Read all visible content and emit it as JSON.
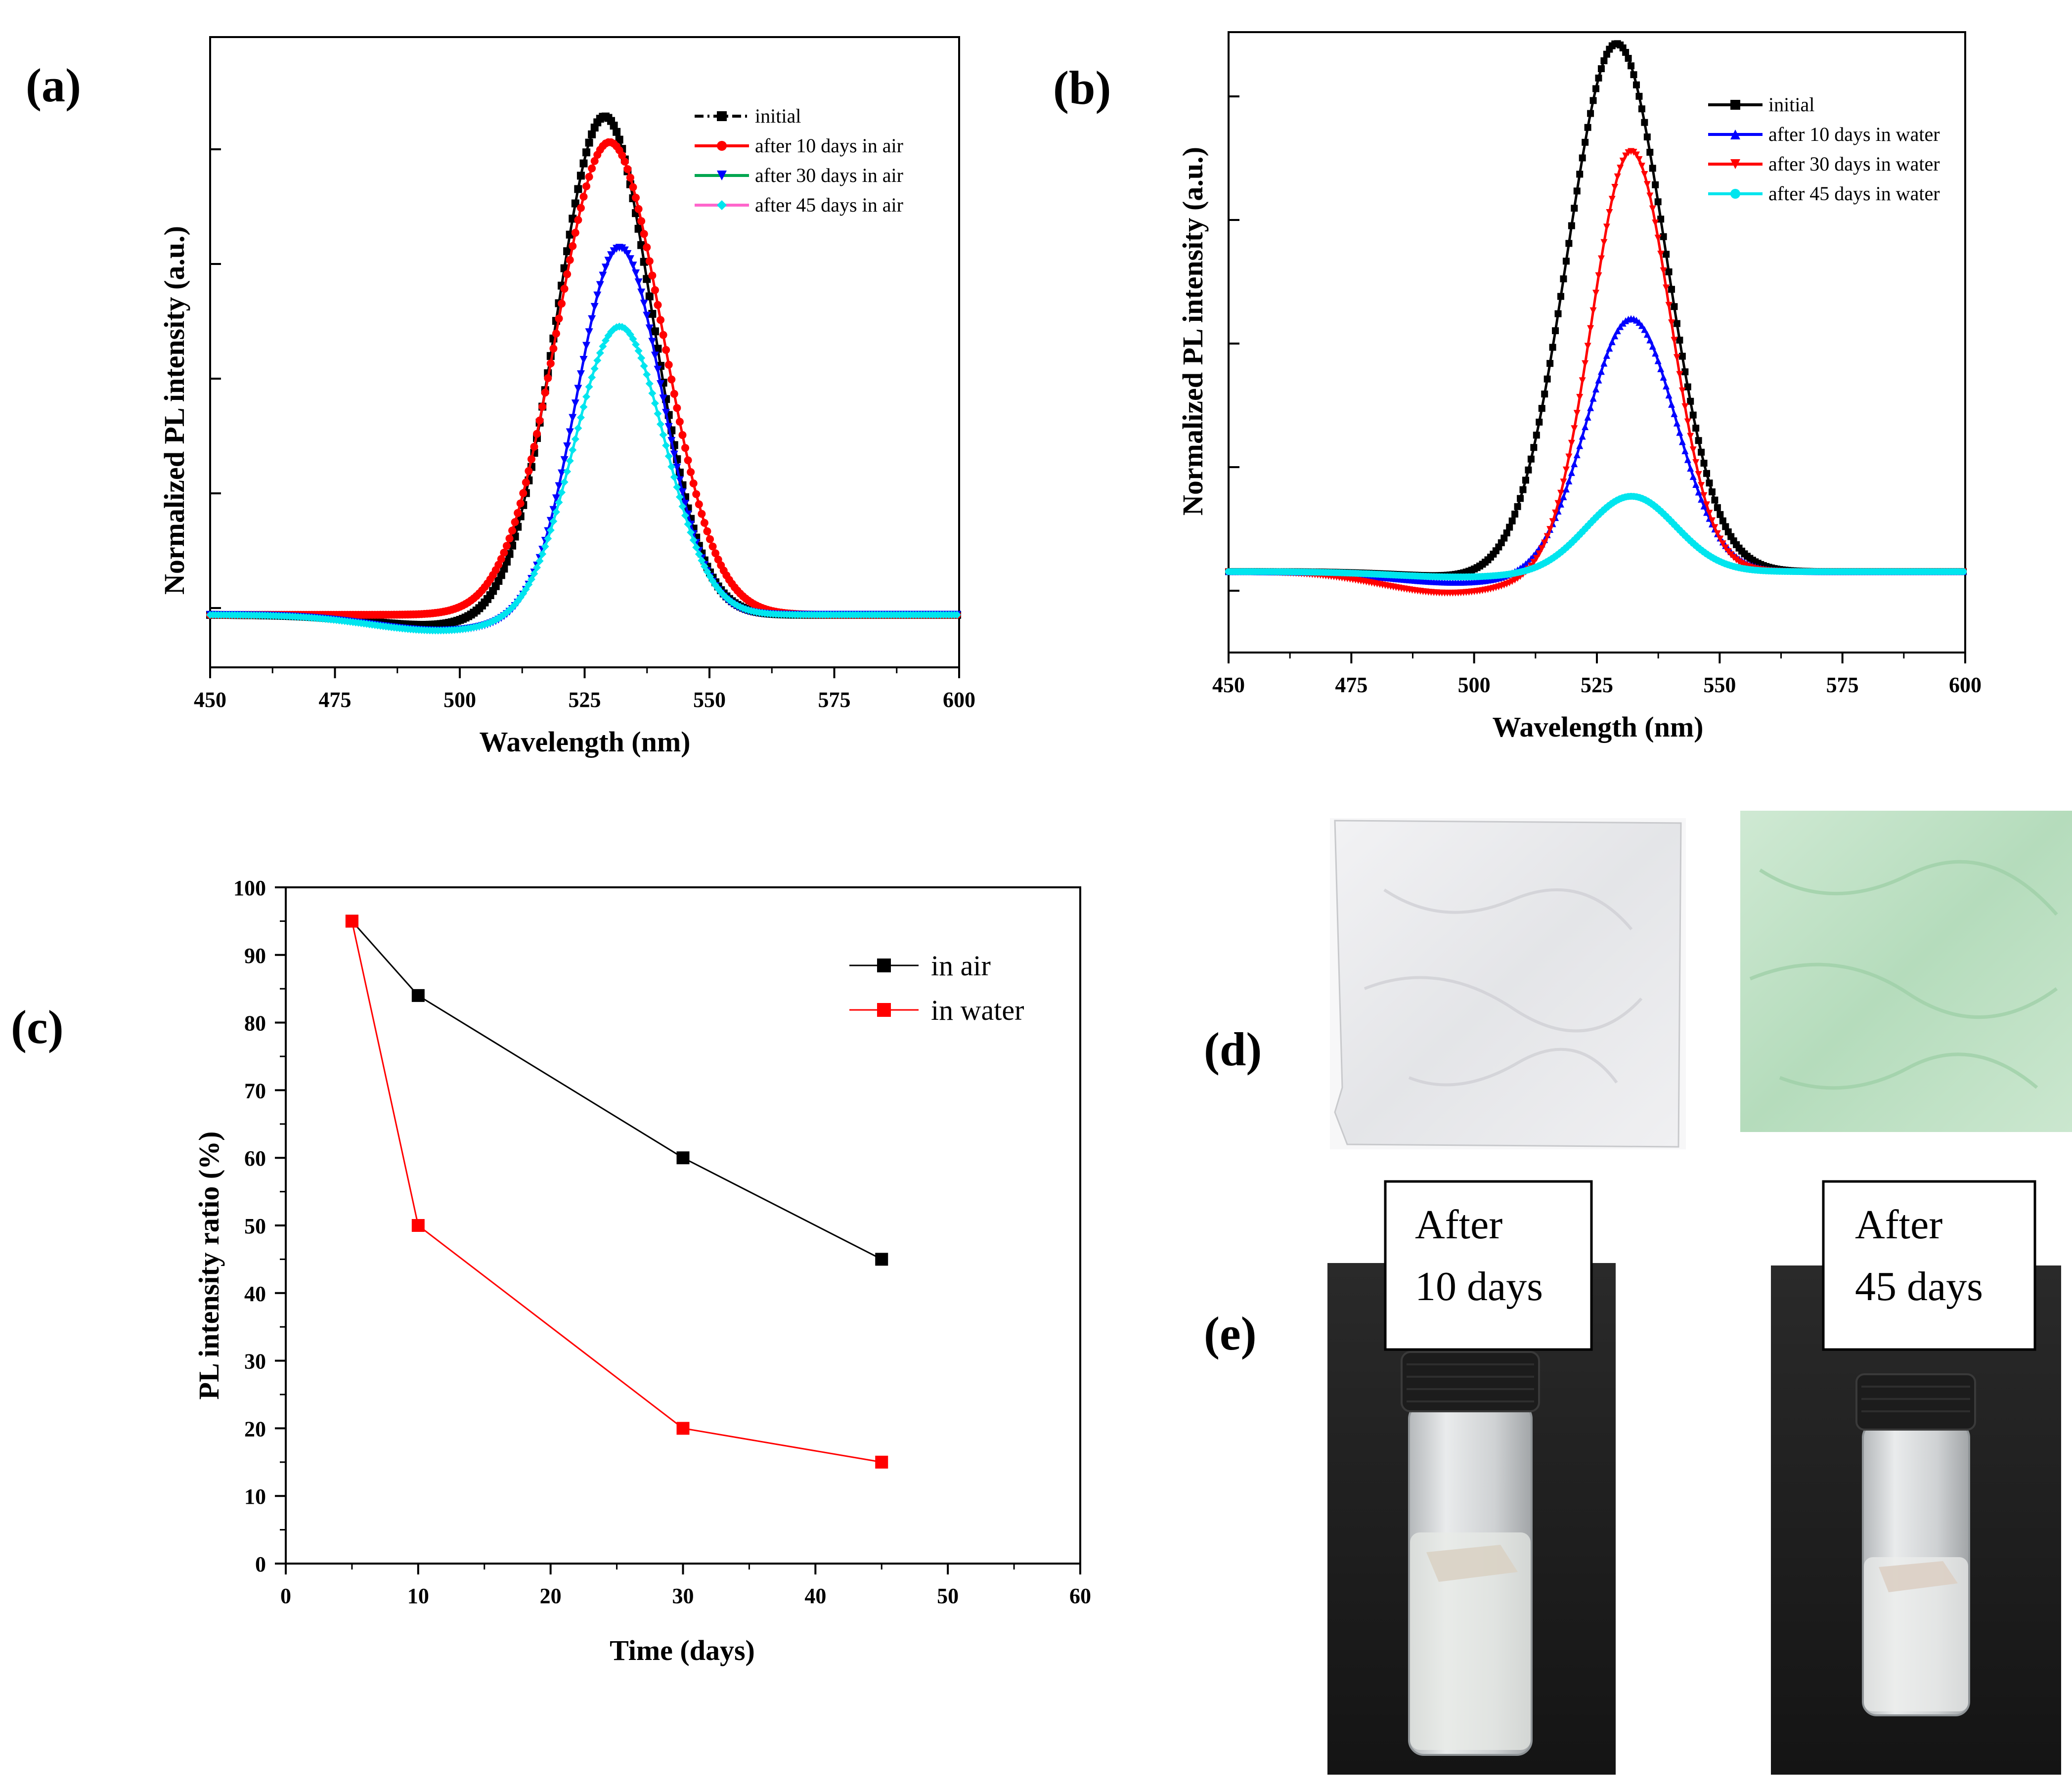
{
  "chart_data": [
    {
      "panel": "(a)",
      "type": "line",
      "xlabel": "Wavelength (nm)",
      "ylabel": "Normalized PL intensity (a.u.)",
      "xlim": [
        450,
        600
      ],
      "ylim": [
        -0.1,
        1.1
      ],
      "xticks": [
        450,
        475,
        500,
        525,
        550,
        575,
        600
      ],
      "yticks_labeled": false,
      "legend_position": "top-right",
      "series": [
        {
          "name": "initial",
          "color": "#000000",
          "marker": "square",
          "style": "dash-dot",
          "baseline": 0,
          "peak_x": 529,
          "peak_y": 0.95,
          "sigma": 9.5,
          "dip_x": 495,
          "dip_y": -0.02
        },
        {
          "name": "after 10 days in air",
          "color": "#ff0000",
          "marker": "circle",
          "style": "solid",
          "baseline": 0,
          "peak_x": 530,
          "peak_y": 0.9,
          "sigma": 10.5,
          "dip_x": 500,
          "dip_y": 0
        },
        {
          "name": "after 30 days in air",
          "color": "#0000ff",
          "marker": "triangle-down",
          "style": "solid",
          "baseline": 0,
          "peak_x": 532,
          "peak_y": 0.7,
          "sigma": 8.5,
          "dip_x": 496,
          "dip_y": -0.03
        },
        {
          "name": "after 45 days in air",
          "color": "#00e5ee",
          "marker": "diamond",
          "style": "solid",
          "baseline": 0,
          "peak_x": 532,
          "peak_y": 0.55,
          "sigma": 9,
          "dip_x": 496,
          "dip_y": -0.03
        }
      ],
      "legend_line_colors": [
        "#000000",
        "#ff0000",
        "#00a650",
        "#ff66cc"
      ]
    },
    {
      "panel": "(b)",
      "type": "line",
      "xlabel": "Wavelength (nm)",
      "ylabel": "Normalized PL intensity (a.u.)",
      "xlim": [
        450,
        600
      ],
      "ylim": [
        -0.15,
        1.0
      ],
      "xticks": [
        450,
        475,
        500,
        525,
        550,
        575,
        600
      ],
      "yticks_labeled": false,
      "legend_position": "top-right",
      "series": [
        {
          "name": "initial",
          "color": "#000000",
          "marker": "square",
          "style": "solid",
          "baseline": 0,
          "peak_x": 529,
          "peak_y": 0.98,
          "sigma": 10,
          "dip_x": 500,
          "dip_y": -0.01
        },
        {
          "name": "after 10 days in water",
          "color": "#0000ff",
          "marker": "triangle-up",
          "style": "solid",
          "baseline": 0,
          "peak_x": 532,
          "peak_y": 0.47,
          "sigma": 9,
          "dip_x": 497,
          "dip_y": -0.02
        },
        {
          "name": "after 30 days in water",
          "color": "#ff0000",
          "marker": "triangle-down",
          "style": "solid",
          "baseline": 0,
          "peak_x": 532,
          "peak_y": 0.78,
          "sigma": 8,
          "dip_x": 495,
          "dip_y": -0.04
        },
        {
          "name": "after 45 days in water",
          "color": "#00e5ee",
          "marker": "circle",
          "style": "solid",
          "baseline": 0,
          "peak_x": 532,
          "peak_y": 0.14,
          "sigma": 9,
          "dip_x": 497,
          "dip_y": -0.01
        }
      ]
    },
    {
      "panel": "(c)",
      "type": "line",
      "xlabel": "Time (days)",
      "ylabel": "PL intensity ratio (%)",
      "xlim": [
        0,
        60
      ],
      "ylim": [
        0,
        100
      ],
      "xticks": [
        0,
        10,
        20,
        30,
        40,
        50,
        60
      ],
      "yticks": [
        0,
        10,
        20,
        30,
        40,
        50,
        60,
        70,
        80,
        90,
        100
      ],
      "legend_position": "top-right",
      "series": [
        {
          "name": "in air",
          "color": "#000000",
          "x": [
            5,
            10,
            30,
            45
          ],
          "y": [
            95,
            84,
            60,
            45
          ]
        },
        {
          "name": "in water",
          "color": "#ff0000",
          "x": [
            5,
            10,
            30,
            45
          ],
          "y": [
            95,
            50,
            20,
            15
          ]
        }
      ]
    }
  ],
  "panels": {
    "a": "(a)",
    "b": "(b)",
    "c": "(c)",
    "d": "(d)",
    "e": "(e)"
  },
  "photos": {
    "film_left": {
      "color": "#ececee",
      "desc_color": "#d9dadc"
    },
    "film_right": {
      "color": "#c3e2c8",
      "desc_color": "#a9d4b0"
    },
    "caption_left": [
      "After",
      "10 days"
    ],
    "caption_right": [
      "After",
      "45 days"
    ]
  }
}
